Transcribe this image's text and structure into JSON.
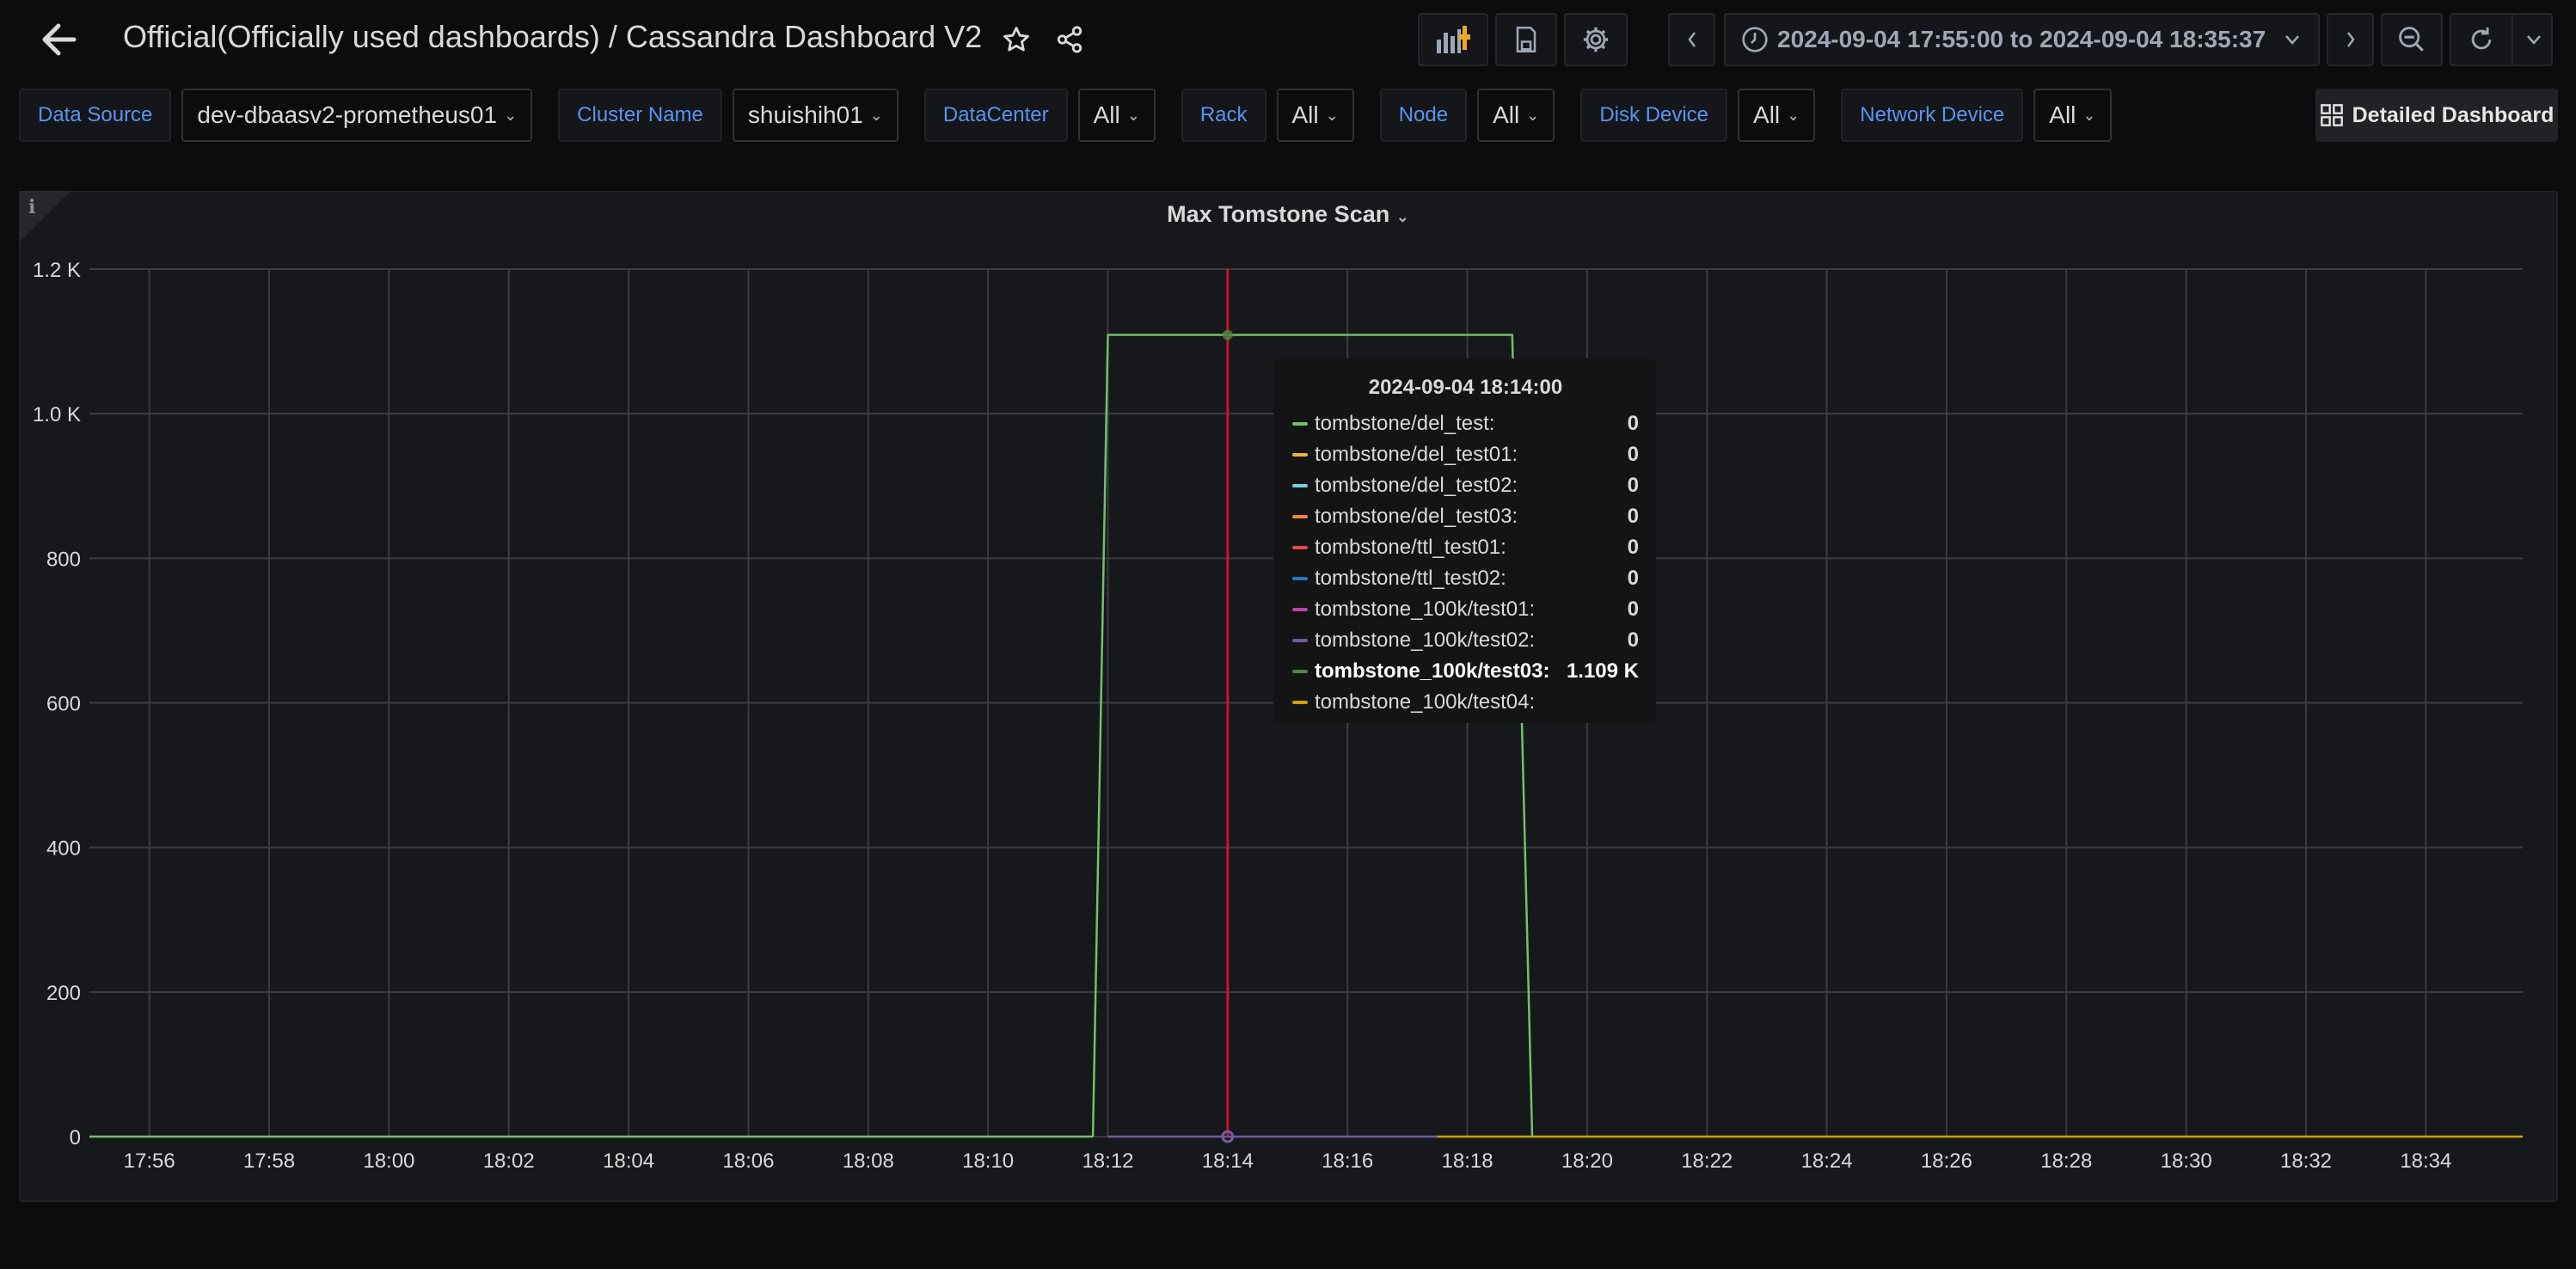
{
  "header": {
    "title": "Official(Officially used dashboards) / Cassandra Dashboard V2",
    "time_range": "2024-09-04 17:55:00 to 2024-09-04 18:35:37",
    "icons": [
      "arrow-left-icon",
      "star-icon",
      "share-icon",
      "add-panel-icon",
      "save-icon",
      "gear-icon",
      "chevron-left-icon",
      "clock-icon",
      "chevron-down-icon",
      "chevron-right-icon",
      "zoom-out-icon",
      "refresh-icon"
    ]
  },
  "filters": [
    {
      "label": "Data Source",
      "value": "dev-dbaasv2-prometheus01"
    },
    {
      "label": "Cluster Name",
      "value": "shuishih01"
    },
    {
      "label": "DataCenter",
      "value": "All"
    },
    {
      "label": "Rack",
      "value": "All"
    },
    {
      "label": "Node",
      "value": "All"
    },
    {
      "label": "Disk Device",
      "value": "All"
    },
    {
      "label": "Network Device",
      "value": "All"
    }
  ],
  "detailed_dashboard_label": "Detailed Dashboard",
  "panel": {
    "title": "Max Tomstone Scan",
    "info_icon": "i"
  },
  "tooltip": {
    "time": "2024-09-04 18:14:00",
    "rows": [
      {
        "name": "tombstone/del_test:",
        "value": "0",
        "color": "#73bf69"
      },
      {
        "name": "tombstone/del_test01:",
        "value": "0",
        "color": "#eab839"
      },
      {
        "name": "tombstone/del_test02:",
        "value": "0",
        "color": "#6ed0e0"
      },
      {
        "name": "tombstone/del_test03:",
        "value": "0",
        "color": "#ef843c"
      },
      {
        "name": "tombstone/ttl_test01:",
        "value": "0",
        "color": "#e24d42"
      },
      {
        "name": "tombstone/ttl_test02:",
        "value": "0",
        "color": "#1f78c1"
      },
      {
        "name": "tombstone_100k/test01:",
        "value": "0",
        "color": "#ba43a9"
      },
      {
        "name": "tombstone_100k/test02:",
        "value": "0",
        "color": "#705da0"
      },
      {
        "name": "tombstone_100k/test03:",
        "value": "1.109 K",
        "color": "#508642",
        "bold": true
      },
      {
        "name": "tombstone_100k/test04:",
        "value": "",
        "color": "#cca300"
      }
    ]
  },
  "chart_data": {
    "type": "line",
    "title": "Max Tomstone Scan",
    "xlim": [
      "17:55:00",
      "18:35:37"
    ],
    "ylim": [
      0,
      1200
    ],
    "grid": true,
    "x_ticks": [
      "17:56",
      "17:58",
      "18:00",
      "18:02",
      "18:04",
      "18:06",
      "18:08",
      "18:10",
      "18:12",
      "18:14",
      "18:16",
      "18:18",
      "18:20",
      "18:22",
      "18:24",
      "18:26",
      "18:28",
      "18:30",
      "18:32",
      "18:34"
    ],
    "y_ticks": [
      {
        "value": 0,
        "label": "0"
      },
      {
        "value": 200,
        "label": "200"
      },
      {
        "value": 400,
        "label": "400"
      },
      {
        "value": 600,
        "label": "600"
      },
      {
        "value": 800,
        "label": "800"
      },
      {
        "value": 1000,
        "label": "1.0 K"
      },
      {
        "value": 1200,
        "label": "1.2 K"
      }
    ],
    "cursor_x": "18:14:00",
    "cursor_color": "#c4162a",
    "series": [
      {
        "name": "tombstone/del_test",
        "color": "#73bf69",
        "points": [
          [
            "17:55:00",
            0
          ],
          [
            "18:11:45",
            0
          ]
        ]
      },
      {
        "name": "tombstone_100k/test02",
        "color": "#705da0",
        "points": [
          [
            "18:12:00",
            0
          ],
          [
            "18:17:30",
            0
          ]
        ]
      },
      {
        "name": "tombstone_100k/test04",
        "color": "#cca300",
        "points": [
          [
            "18:17:30",
            0
          ],
          [
            "18:35:37",
            0
          ]
        ]
      },
      {
        "name": "tombstone_100k/test03",
        "color": "#73bf69",
        "points": [
          [
            "18:11:45",
            0
          ],
          [
            "18:12:00",
            1109
          ],
          [
            "18:18:45",
            1109
          ],
          [
            "18:19:05",
            0
          ]
        ]
      }
    ]
  }
}
